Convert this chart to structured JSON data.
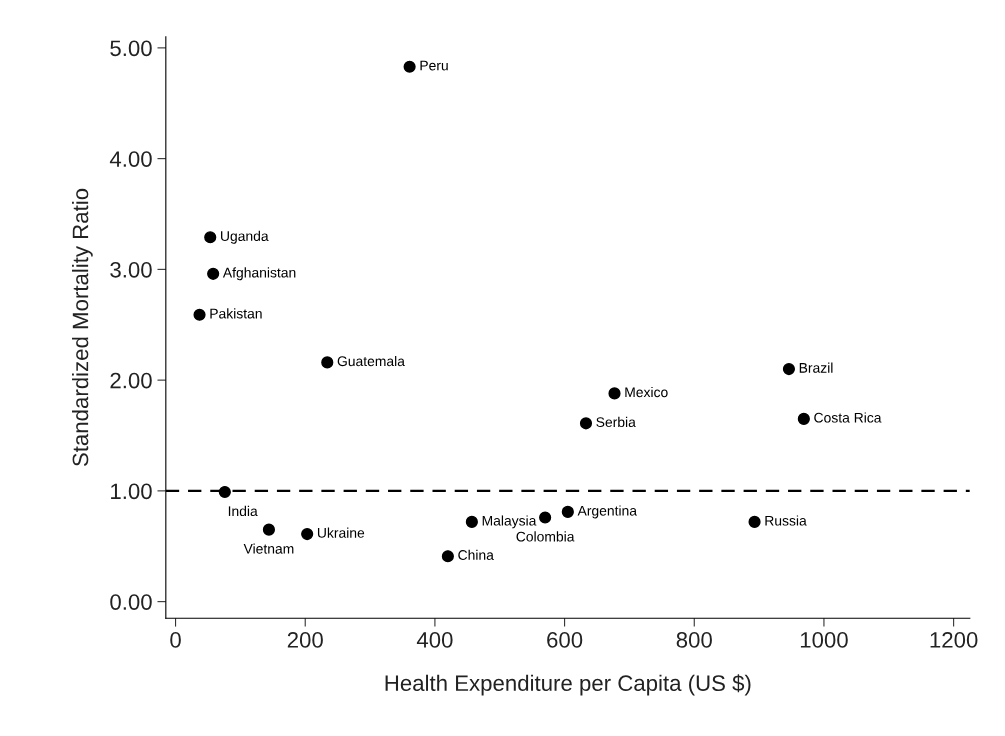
{
  "chart_data": {
    "type": "scatter",
    "xlabel": "Health Expenditure per Capita (US $)",
    "ylabel": "Standardized Mortality Ratio",
    "series": [
      {
        "color": "#000000",
        "x": [
          361,
          53.5,
          58,
          37,
          234,
          946,
          677,
          633,
          969,
          76,
          144,
          203,
          457,
          420,
          570,
          605,
          893
        ],
        "values": [
          4.83,
          3.29,
          2.96,
          2.59,
          2.16,
          2.1,
          1.88,
          1.61,
          1.65,
          0.99,
          0.65,
          0.61,
          0.72,
          0.41,
          0.76,
          0.81,
          0.72
        ]
      }
    ],
    "annotations": [
      {
        "text": "Peru",
        "x": 361,
        "y": 4.83
      },
      {
        "text": "Uganda",
        "x": 53.5,
        "y": 3.29
      },
      {
        "text": "Afghanistan",
        "x": 58,
        "y": 2.96
      },
      {
        "text": "Pakistan",
        "x": 37,
        "y": 2.59
      },
      {
        "text": "Guatemala",
        "x": 234,
        "y": 2.16
      },
      {
        "text": "Brazil",
        "x": 946,
        "y": 2.1
      },
      {
        "text": "Mexico",
        "x": 677,
        "y": 1.88
      },
      {
        "text": "Serbia",
        "x": 633,
        "y": 1.61
      },
      {
        "text": "Costa Rica",
        "x": 969,
        "y": 1.65
      },
      {
        "text": "India",
        "x": 76,
        "y": 0.99
      },
      {
        "text": "Vietnam",
        "x": 144,
        "y": 0.65
      },
      {
        "text": "Ukraine",
        "x": 203,
        "y": 0.61
      },
      {
        "text": "Malaysia",
        "x": 457,
        "y": 0.72
      },
      {
        "text": "China",
        "x": 420,
        "y": 0.41
      },
      {
        "text": "Colombia",
        "x": 570,
        "y": 0.76
      },
      {
        "text": "Argentina",
        "x": 605,
        "y": 0.81
      },
      {
        "text": "Russia",
        "x": 893,
        "y": 0.72
      }
    ],
    "xlim": [
      -15,
      1225
    ],
    "xticks": [
      0,
      200,
      400,
      600,
      800,
      1000,
      1200
    ],
    "ylim": [
      -0.15,
      5.1
    ],
    "yticks": [
      {
        "value": 0,
        "label": "0.00"
      },
      {
        "value": 1,
        "label": "1.00"
      },
      {
        "value": 2,
        "label": "2.00"
      },
      {
        "value": 3,
        "label": "3.00"
      },
      {
        "value": 4,
        "label": "4.00"
      },
      {
        "value": 5,
        "label": "5.00"
      }
    ],
    "ref_lines": [
      {
        "axis": "y",
        "value": 1,
        "color": "#000000",
        "line_style": "dashed"
      }
    ],
    "marker": "circle",
    "grid": false,
    "legend": false
  }
}
